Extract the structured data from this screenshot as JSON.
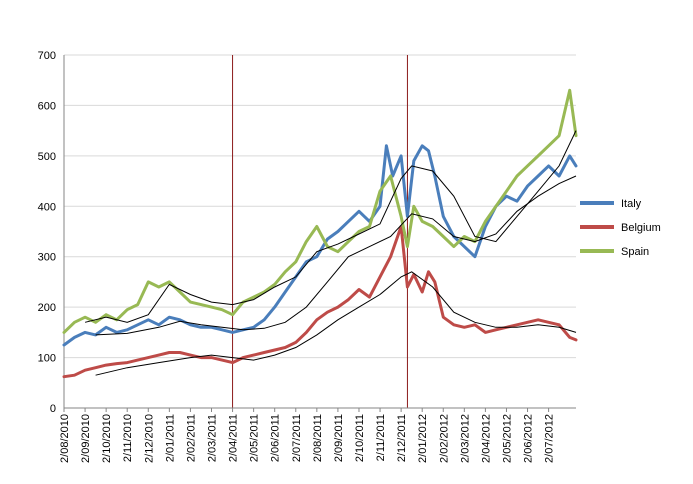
{
  "chart_data": {
    "type": "line",
    "title": "",
    "xlabel": "",
    "ylabel": "",
    "ylim": [
      0,
      700
    ],
    "yticks": [
      "0",
      "100",
      "200",
      "300",
      "400",
      "500",
      "600",
      "700"
    ],
    "x_tick_labels": [
      "2/08/2010",
      "2/09/2010",
      "2/10/2010",
      "2/11/2010",
      "2/12/2010",
      "2/01/2011",
      "2/02/2011",
      "2/03/2011",
      "2/04/2011",
      "2/05/2011",
      "2/06/2011",
      "2/07/2011",
      "2/08/2011",
      "2/09/2011",
      "2/10/2011",
      "2/11/2011",
      "2/12/2011",
      "2/01/2012",
      "2/02/2012",
      "2/03/2012",
      "2/04/2012",
      "2/05/2012",
      "2/06/2012",
      "2/07/2012"
    ],
    "x_range_months": [
      0,
      24.3
    ],
    "grid": "horizontal",
    "legend_position": "right",
    "vertical_markers": [
      {
        "x": 8.0,
        "color": "#8B1A1A"
      },
      {
        "x": 16.3,
        "color": "#8B1A1A"
      }
    ],
    "colors": {
      "Italy": "#4A7EBB",
      "Belgium": "#BE4B48",
      "Spain": "#98B954",
      "trend": "#000000",
      "grid": "#D9D9D9",
      "axis": "#868686"
    },
    "series": [
      {
        "name": "Italy",
        "x": [
          0,
          0.5,
          1,
          1.5,
          2,
          2.5,
          3,
          3.5,
          4,
          4.5,
          5,
          5.5,
          6,
          6.5,
          7,
          7.5,
          8,
          8.5,
          9,
          9.5,
          10,
          10.5,
          11,
          11.5,
          12,
          12.5,
          13,
          13.5,
          14,
          14.5,
          15,
          15.3,
          15.6,
          16,
          16.3,
          16.6,
          17,
          17.3,
          17.6,
          18,
          18.5,
          19,
          19.5,
          20,
          20.5,
          21,
          21.5,
          22,
          22.5,
          23,
          23.5,
          24,
          24.3
        ],
        "values": [
          125,
          140,
          150,
          145,
          160,
          150,
          155,
          165,
          175,
          165,
          180,
          175,
          165,
          160,
          160,
          155,
          150,
          155,
          160,
          175,
          200,
          230,
          260,
          290,
          300,
          335,
          350,
          370,
          390,
          370,
          400,
          520,
          460,
          500,
          380,
          490,
          520,
          510,
          460,
          380,
          340,
          320,
          300,
          360,
          400,
          420,
          410,
          440,
          460,
          480,
          460,
          500,
          480
        ]
      },
      {
        "name": "Belgium",
        "x": [
          0,
          0.5,
          1,
          1.5,
          2,
          2.5,
          3,
          3.5,
          4,
          4.5,
          5,
          5.5,
          6,
          6.5,
          7,
          7.5,
          8,
          8.5,
          9,
          9.5,
          10,
          10.5,
          11,
          11.5,
          12,
          12.5,
          13,
          13.5,
          14,
          14.5,
          15,
          15.5,
          16,
          16.3,
          16.6,
          17,
          17.3,
          17.6,
          18,
          18.5,
          19,
          19.5,
          20,
          20.5,
          21,
          21.5,
          22,
          22.5,
          23,
          23.5,
          24,
          24.3
        ],
        "values": [
          62,
          65,
          75,
          80,
          85,
          88,
          90,
          95,
          100,
          105,
          110,
          110,
          105,
          100,
          100,
          95,
          90,
          100,
          105,
          110,
          115,
          120,
          130,
          150,
          175,
          190,
          200,
          215,
          235,
          220,
          260,
          300,
          360,
          240,
          265,
          230,
          270,
          250,
          180,
          165,
          160,
          165,
          150,
          155,
          160,
          165,
          170,
          175,
          170,
          165,
          140,
          135
        ]
      },
      {
        "name": "Spain",
        "x": [
          0,
          0.5,
          1,
          1.5,
          2,
          2.5,
          3,
          3.5,
          4,
          4.5,
          5,
          5.5,
          6,
          6.5,
          7,
          7.5,
          8,
          8.5,
          9,
          9.5,
          10,
          10.5,
          11,
          11.5,
          12,
          12.5,
          13,
          13.5,
          14,
          14.5,
          15,
          15.5,
          16,
          16.3,
          16.6,
          17,
          17.5,
          18,
          18.5,
          19,
          19.5,
          20,
          20.5,
          21,
          21.5,
          22,
          22.5,
          23,
          23.5,
          24,
          24.3
        ],
        "values": [
          150,
          170,
          180,
          170,
          185,
          175,
          195,
          205,
          250,
          240,
          250,
          230,
          210,
          205,
          200,
          195,
          185,
          210,
          220,
          230,
          245,
          270,
          290,
          330,
          360,
          320,
          310,
          330,
          350,
          360,
          430,
          460,
          380,
          320,
          400,
          370,
          360,
          340,
          320,
          340,
          330,
          370,
          400,
          430,
          460,
          480,
          500,
          520,
          540,
          630,
          540
        ]
      },
      {
        "name": "Italy-trend",
        "x": [
          1.5,
          3,
          4.5,
          5.5,
          6.5,
          7.5,
          8.5,
          9.5,
          10.5,
          11.5,
          12.5,
          13.5,
          14.5,
          15.5,
          16.5,
          17.5,
          18.5,
          19.5,
          20.5,
          21.5,
          22.5,
          23.5,
          24.3
        ],
        "values": [
          145,
          148,
          160,
          172,
          165,
          160,
          155,
          158,
          170,
          200,
          250,
          300,
          320,
          340,
          385,
          375,
          340,
          330,
          345,
          390,
          420,
          445,
          460
        ]
      },
      {
        "name": "Belgium-trend",
        "x": [
          1.5,
          3,
          4.5,
          6,
          7,
          8,
          9,
          10,
          11,
          12,
          13,
          14,
          15,
          16,
          16.5,
          17.5,
          18.5,
          19.5,
          20.5,
          21.5,
          22.5,
          23.5,
          24.3
        ],
        "values": [
          65,
          80,
          90,
          100,
          105,
          100,
          95,
          105,
          120,
          145,
          175,
          200,
          225,
          260,
          270,
          240,
          190,
          170,
          160,
          160,
          165,
          160,
          150
        ]
      },
      {
        "name": "Spain-trend",
        "x": [
          1,
          2,
          3,
          4,
          5,
          6,
          7,
          8,
          9,
          10,
          11,
          12,
          13,
          14,
          15,
          16,
          16.5,
          17.5,
          18.5,
          19.5,
          20.5,
          21.5,
          22.5,
          23.5,
          24.3
        ],
        "values": [
          170,
          180,
          170,
          185,
          245,
          225,
          210,
          205,
          215,
          240,
          260,
          310,
          325,
          345,
          365,
          455,
          480,
          470,
          420,
          340,
          330,
          380,
          430,
          480,
          550
        ]
      }
    ]
  }
}
